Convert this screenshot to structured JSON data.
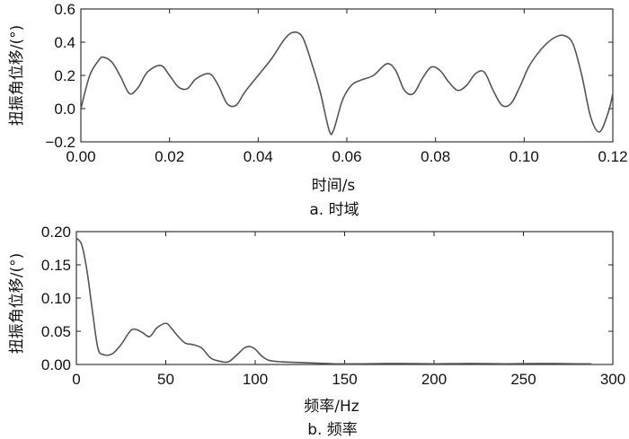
{
  "chart_data": [
    {
      "type": "line",
      "caption": "a. 时域",
      "xlabel": "时间/s",
      "ylabel": "扭振角位移/(°)",
      "xlim": [
        0,
        0.12
      ],
      "ylim": [
        -0.2,
        0.6
      ],
      "xticks": [
        0.0,
        0.02,
        0.04,
        0.06,
        0.08,
        0.1,
        0.12
      ],
      "xtick_labels": [
        "0.00",
        "0.02",
        "0.04",
        "0.06",
        "0.08",
        "0.10",
        "0.12"
      ],
      "yticks": [
        -0.2,
        0.0,
        0.2,
        0.4,
        0.6
      ],
      "ytick_labels": [
        "−0.2",
        "0.0",
        "0.2",
        "0.4",
        "0.6"
      ],
      "grid": false,
      "line_color": "#555555",
      "series": [
        {
          "x": [
            0.0,
            0.002,
            0.004,
            0.005,
            0.007,
            0.009,
            0.011,
            0.013,
            0.015,
            0.018,
            0.02,
            0.022,
            0.024,
            0.026,
            0.029,
            0.031,
            0.033,
            0.035,
            0.037,
            0.04,
            0.043,
            0.046,
            0.048,
            0.05,
            0.052,
            0.054,
            0.056,
            0.057,
            0.059,
            0.061,
            0.063,
            0.066,
            0.069,
            0.071,
            0.073,
            0.075,
            0.077,
            0.079,
            0.081,
            0.083,
            0.085,
            0.087,
            0.089,
            0.091,
            0.093,
            0.095,
            0.097,
            0.099,
            0.101,
            0.103,
            0.105,
            0.107,
            0.109,
            0.111,
            0.113,
            0.115,
            0.117,
            0.119,
            0.12
          ],
          "y": [
            0.0,
            0.2,
            0.29,
            0.31,
            0.28,
            0.19,
            0.09,
            0.13,
            0.22,
            0.26,
            0.2,
            0.13,
            0.12,
            0.18,
            0.21,
            0.14,
            0.03,
            0.02,
            0.1,
            0.2,
            0.3,
            0.42,
            0.46,
            0.43,
            0.28,
            0.1,
            -0.13,
            -0.13,
            0.05,
            0.14,
            0.17,
            0.2,
            0.27,
            0.23,
            0.11,
            0.09,
            0.18,
            0.25,
            0.23,
            0.16,
            0.11,
            0.14,
            0.21,
            0.22,
            0.11,
            0.02,
            0.03,
            0.13,
            0.25,
            0.33,
            0.39,
            0.43,
            0.44,
            0.39,
            0.2,
            -0.05,
            -0.14,
            -0.02,
            0.09
          ]
        }
      ]
    },
    {
      "type": "line",
      "caption": "b. 频率",
      "xlabel": "频率/Hz",
      "ylabel": "扭振角位移/(°)",
      "xlim": [
        0,
        300
      ],
      "ylim": [
        0,
        0.2
      ],
      "xticks": [
        0,
        50,
        100,
        150,
        200,
        250,
        300
      ],
      "xtick_labels": [
        "0",
        "50",
        "100",
        "150",
        "200",
        "250",
        "300"
      ],
      "yticks": [
        0.0,
        0.05,
        0.1,
        0.15,
        0.2
      ],
      "ytick_labels": [
        "0.00",
        "0.05",
        "0.10",
        "0.15",
        "0.20"
      ],
      "grid": false,
      "line_color": "#555555",
      "series": [
        {
          "x": [
            0,
            3,
            6,
            9,
            12,
            15,
            20,
            25,
            30,
            33,
            37,
            41,
            45,
            50,
            53,
            57,
            61,
            65,
            70,
            75,
            80,
            85,
            90,
            94,
            97,
            100,
            104,
            108,
            115,
            125,
            135,
            145,
            160,
            180,
            200,
            220,
            240,
            260,
            280,
            288
          ],
          "y": [
            0.19,
            0.18,
            0.14,
            0.08,
            0.025,
            0.015,
            0.016,
            0.03,
            0.05,
            0.053,
            0.048,
            0.042,
            0.055,
            0.062,
            0.055,
            0.042,
            0.032,
            0.03,
            0.025,
            0.01,
            0.005,
            0.004,
            0.015,
            0.025,
            0.027,
            0.023,
            0.012,
            0.006,
            0.004,
            0.003,
            0.002,
            0.001,
            0.001,
            0.0015,
            0.001,
            0.0015,
            0.001,
            0.0015,
            0.001,
            0.001
          ]
        }
      ]
    }
  ]
}
